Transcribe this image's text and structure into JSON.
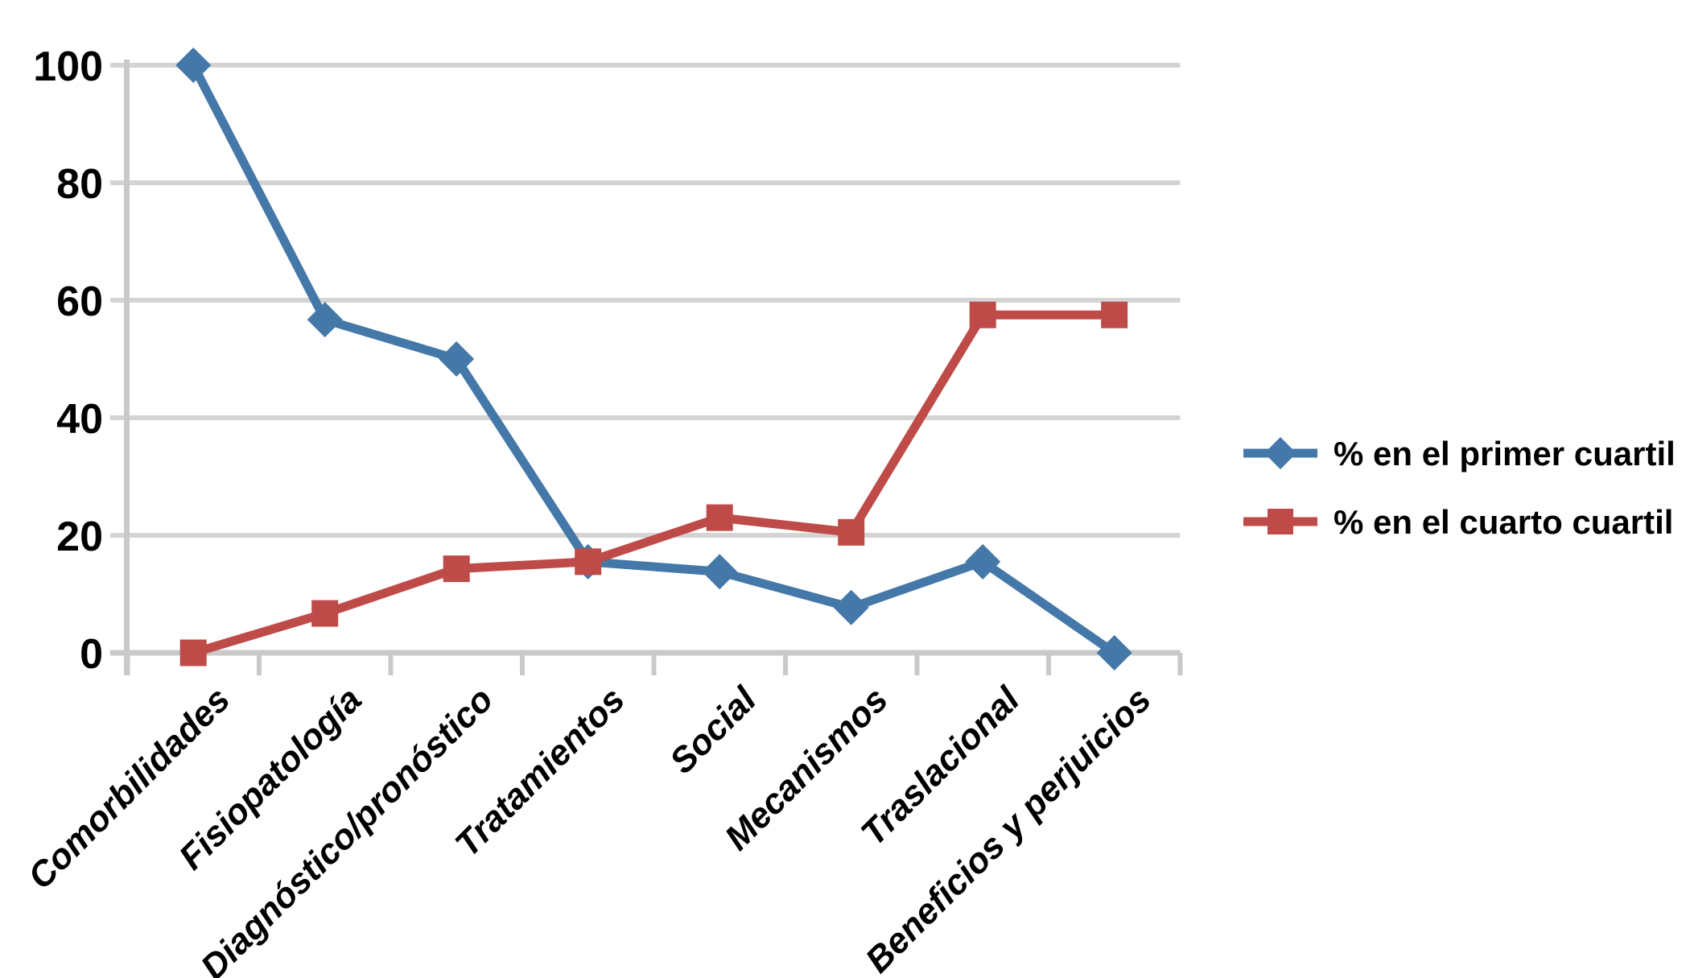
{
  "chart_data": {
    "type": "line",
    "title": "",
    "xlabel": "",
    "ylabel": "",
    "categories": [
      "Comorbilidades",
      "Fisiopatología",
      "Diagnóstico/pronóstico",
      "Tratamientos",
      "Social",
      "Mecanismos",
      "Traslacional",
      "Beneficios y perjuicios"
    ],
    "series": [
      {
        "name": "% en el primer cuartil",
        "marker": "diamond",
        "color": "#4478a8",
        "values": [
          100,
          56.7,
          50,
          15.5,
          13.8,
          7.7,
          15.5,
          0
        ]
      },
      {
        "name": "% en el cuarto cuartil",
        "marker": "square",
        "color": "#be4b48",
        "values": [
          0,
          6.7,
          14.3,
          15.5,
          23,
          20.5,
          57.5,
          57.5
        ]
      }
    ],
    "yticks": [
      100,
      80,
      60,
      40,
      20,
      0
    ],
    "ylim": [
      0,
      100
    ],
    "grid": true,
    "legend_position": "right"
  },
  "colors": {
    "gridline": "#d4d4d4",
    "axis": "#c9c9c9",
    "text": "#000000",
    "background": "#ffffff"
  }
}
